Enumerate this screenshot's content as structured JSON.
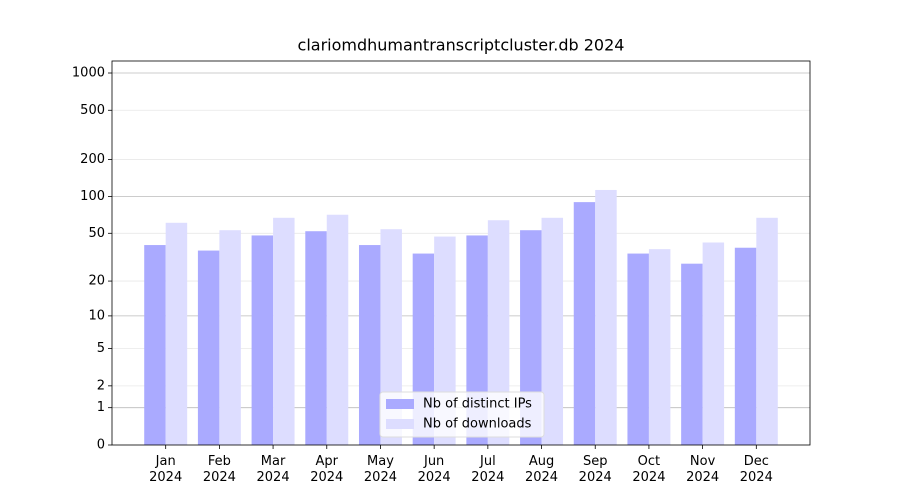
{
  "chart_data": {
    "type": "bar",
    "title": "clariomdhumantranscriptcluster.db 2024",
    "categories": [
      "Jan\n2024",
      "Feb\n2024",
      "Mar\n2024",
      "Apr\n2024",
      "May\n2024",
      "Jun\n2024",
      "Jul\n2024",
      "Aug\n2024",
      "Sep\n2024",
      "Oct\n2024",
      "Nov\n2024",
      "Dec\n2024"
    ],
    "series": [
      {
        "name": "Nb of distinct IPs",
        "color": "#aaaaff",
        "values": [
          40,
          36,
          48,
          52,
          40,
          34,
          48,
          53,
          90,
          34,
          28,
          38
        ]
      },
      {
        "name": "Nb of downloads",
        "color": "#ddddff",
        "values": [
          61,
          53,
          67,
          71,
          54,
          47,
          64,
          67,
          113,
          37,
          42,
          67
        ]
      }
    ],
    "y_scale": "log1p",
    "ylim": [
      0,
      1250
    ],
    "yticks": [
      0,
      1,
      2,
      5,
      10,
      20,
      50,
      100,
      200,
      500,
      1000
    ],
    "grid": true,
    "legend": "lower center"
  }
}
